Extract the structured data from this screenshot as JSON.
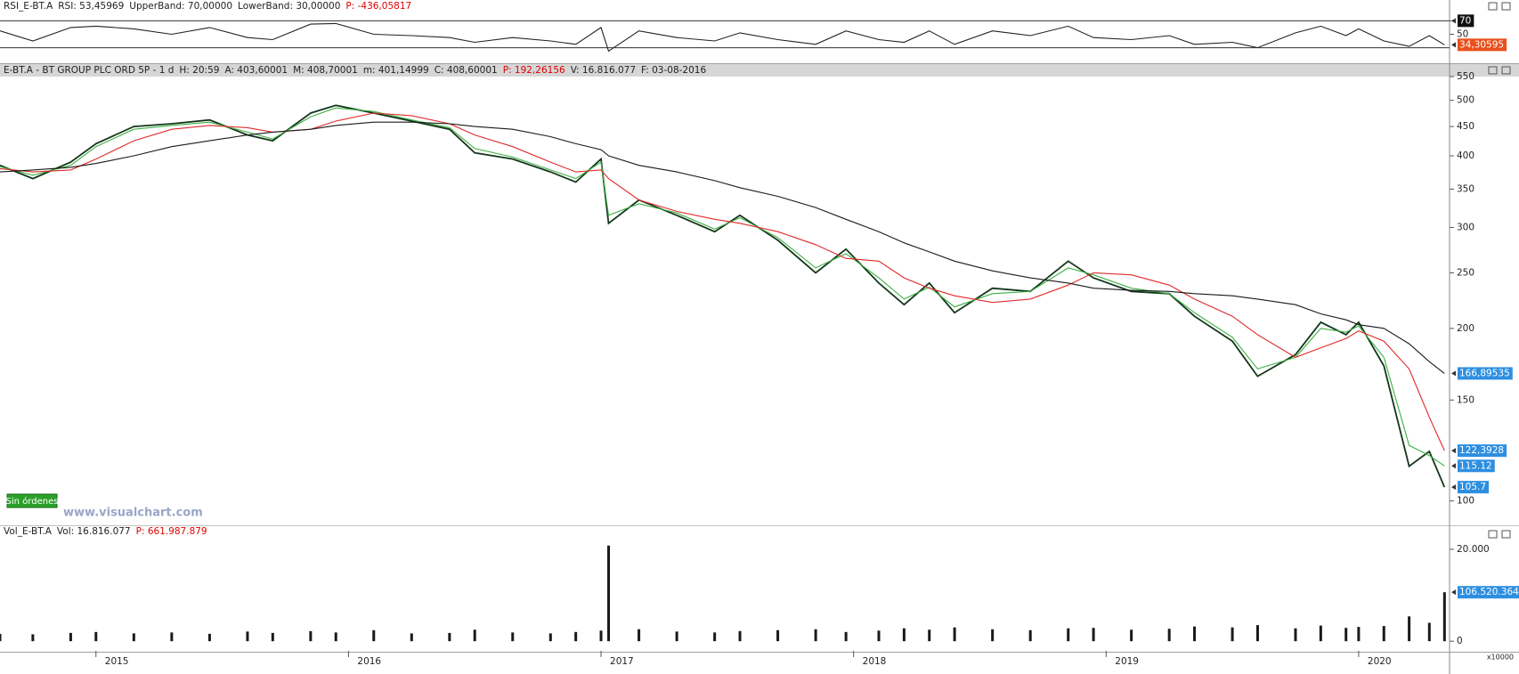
{
  "chart_data": [
    {
      "type": "line",
      "header": [
        {
          "text": "RSI_E-BT.A",
          "color": "#222222"
        },
        {
          "text": "RSI: 53,45969",
          "color": "#222222"
        },
        {
          "text": "UpperBand: 70,00000",
          "color": "#222222"
        },
        {
          "text": "LowerBand: 30,00000",
          "color": "#222222"
        },
        {
          "text": "P: -436,05817",
          "color": "#e00000"
        }
      ],
      "x": [
        2014.62,
        2014.75,
        2014.9,
        2015.0,
        2015.15,
        2015.3,
        2015.45,
        2015.6,
        2015.7,
        2015.85,
        2015.95,
        2016.1,
        2016.25,
        2016.4,
        2016.5,
        2016.65,
        2016.8,
        2016.9,
        2017.0,
        2017.03,
        2017.15,
        2017.3,
        2017.45,
        2017.55,
        2017.7,
        2017.85,
        2017.97,
        2018.1,
        2018.2,
        2018.3,
        2018.4,
        2018.55,
        2018.7,
        2018.85,
        2018.95,
        2019.1,
        2019.25,
        2019.35,
        2019.5,
        2019.6,
        2019.75,
        2019.85,
        2019.95,
        2020.0,
        2020.1,
        2020.2,
        2020.28,
        2020.34
      ],
      "series": [
        {
          "name": "RSI",
          "color": "#222222",
          "values": [
            55,
            40,
            60,
            62,
            58,
            50,
            60,
            45,
            42,
            65,
            66,
            50,
            48,
            45,
            38,
            45,
            40,
            35,
            60,
            25,
            55,
            45,
            40,
            52,
            42,
            35,
            55,
            42,
            38,
            55,
            35,
            55,
            48,
            62,
            45,
            42,
            48,
            35,
            38,
            30,
            52,
            62,
            48,
            58,
            40,
            32,
            48,
            34.30595
          ]
        }
      ],
      "bands": [
        70,
        30
      ],
      "xlim": [
        2014.62,
        2020.36
      ],
      "ylim": [
        7,
        81
      ],
      "yticks": [
        50,
        70
      ],
      "axis_markers": [
        {
          "value": 70,
          "label": "70",
          "color": "#111111"
        },
        {
          "value": 34.30595,
          "label": "34,30595",
          "color": "#e8501c"
        }
      ]
    },
    {
      "type": "line",
      "log_scale": true,
      "header": [
        {
          "text": "E-BT.A - BT GROUP PLC ORD 5P - 1 d",
          "color": "#222222"
        },
        {
          "text": "H: 20:59",
          "color": "#222222"
        },
        {
          "text": "A: 403,60001",
          "color": "#222222"
        },
        {
          "text": "M: 408,70001",
          "color": "#222222"
        },
        {
          "text": "m: 401,14999",
          "color": "#222222"
        },
        {
          "text": "C: 408,60001",
          "color": "#222222"
        },
        {
          "text": "P: 192,26156",
          "color": "#e00000"
        },
        {
          "text": "V: 16.816.077",
          "color": "#222222"
        },
        {
          "text": "F: 03-08-2016",
          "color": "#222222"
        }
      ],
      "x": [
        2014.62,
        2014.75,
        2014.9,
        2015.0,
        2015.15,
        2015.3,
        2015.45,
        2015.6,
        2015.7,
        2015.85,
        2015.95,
        2016.1,
        2016.25,
        2016.4,
        2016.5,
        2016.65,
        2016.8,
        2016.9,
        2017.0,
        2017.03,
        2017.15,
        2017.3,
        2017.45,
        2017.55,
        2017.7,
        2017.85,
        2017.97,
        2018.1,
        2018.2,
        2018.3,
        2018.4,
        2018.55,
        2018.7,
        2018.85,
        2018.95,
        2019.1,
        2019.25,
        2019.35,
        2019.5,
        2019.6,
        2019.75,
        2019.85,
        2019.95,
        2020.0,
        2020.1,
        2020.2,
        2020.28,
        2020.34
      ],
      "series": [
        {
          "name": "E-BT.A",
          "color": "#14361a",
          "values": [
            385,
            365,
            390,
            420,
            450,
            455,
            462,
            435,
            425,
            475,
            490,
            475,
            460,
            445,
            405,
            395,
            375,
            360,
            395,
            305,
            335,
            315,
            295,
            315,
            285,
            250,
            275,
            240,
            220,
            240,
            213,
            235,
            232,
            262,
            245,
            232,
            230,
            210,
            190,
            165,
            180,
            205,
            195,
            205,
            172,
            115,
            122,
            105.7
          ]
        },
        {
          "name": "MA20",
          "color": "#3cb043",
          "values": [
            383,
            370,
            385,
            415,
            445,
            452,
            458,
            440,
            428,
            468,
            485,
            478,
            462,
            448,
            412,
            398,
            378,
            365,
            390,
            315,
            330,
            318,
            298,
            312,
            288,
            255,
            270,
            245,
            225,
            236,
            218,
            230,
            232,
            255,
            248,
            235,
            230,
            213,
            193,
            170,
            178,
            200,
            197,
            202,
            178,
            125,
            120,
            115.12
          ]
        },
        {
          "name": "MA50",
          "color": "#e02a2a",
          "values": [
            380,
            375,
            378,
            395,
            425,
            445,
            452,
            448,
            440,
            445,
            460,
            475,
            470,
            455,
            435,
            415,
            390,
            375,
            378,
            365,
            335,
            320,
            310,
            305,
            295,
            280,
            265,
            262,
            245,
            235,
            228,
            222,
            225,
            238,
            250,
            248,
            238,
            225,
            210,
            195,
            178,
            185,
            192,
            198,
            190,
            170,
            140,
            122.3928
          ]
        },
        {
          "name": "MA200",
          "color": "#1a1a1a",
          "values": [
            375,
            378,
            382,
            388,
            400,
            415,
            425,
            435,
            440,
            445,
            452,
            458,
            458,
            455,
            450,
            445,
            432,
            420,
            410,
            400,
            385,
            375,
            362,
            352,
            340,
            325,
            310,
            295,
            282,
            272,
            262,
            252,
            245,
            240,
            235,
            233,
            232,
            230,
            228,
            225,
            220,
            212,
            207,
            203,
            200,
            188,
            175,
            166.89535
          ]
        }
      ],
      "xlim": [
        2014.62,
        2020.36
      ],
      "ylim": [
        91,
        550
      ],
      "yticks": [
        100,
        150,
        200,
        250,
        300,
        350,
        400,
        450,
        500,
        550
      ],
      "axis_markers": [
        {
          "value": 166.89535,
          "label": "166,89535",
          "color": "#2d8fe0"
        },
        {
          "value": 122.3928,
          "label": "122,3928",
          "color": "#2d8fe0"
        },
        {
          "value": 115.12,
          "label": "115.12",
          "color": "#2d8fe0"
        },
        {
          "value": 105.7,
          "label": "105.7",
          "color": "#2d8fe0"
        }
      ]
    },
    {
      "type": "bar",
      "header": [
        {
          "text": "Vol_E-BT.A",
          "color": "#222222"
        },
        {
          "text": "Vol: 16.816.077",
          "color": "#222222"
        },
        {
          "text": "P: 661.987.879",
          "color": "#e00000"
        }
      ],
      "unit_label": "x10000",
      "x": [
        2014.62,
        2014.75,
        2014.9,
        2015.0,
        2015.15,
        2015.3,
        2015.45,
        2015.6,
        2015.7,
        2015.85,
        2015.95,
        2016.1,
        2016.25,
        2016.4,
        2016.5,
        2016.65,
        2016.8,
        2016.9,
        2017.0,
        2017.03,
        2017.15,
        2017.3,
        2017.45,
        2017.55,
        2017.7,
        2017.85,
        2017.97,
        2018.1,
        2018.2,
        2018.3,
        2018.4,
        2018.55,
        2018.7,
        2018.85,
        2018.95,
        2019.1,
        2019.25,
        2019.35,
        2019.5,
        2019.6,
        2019.75,
        2019.85,
        2019.95,
        2020.0,
        2020.1,
        2020.2,
        2020.28,
        2020.34
      ],
      "series": [
        {
          "name": "Vol",
          "color": "#1a1a1a",
          "values": [
            1600,
            1500,
            1800,
            2000,
            1700,
            1900,
            1600,
            2100,
            1800,
            2200,
            1900,
            2400,
            1700,
            1800,
            2500,
            1900,
            1700,
            2000,
            2300,
            20800,
            2600,
            2100,
            1900,
            2200,
            2400,
            2600,
            2000,
            2300,
            2800,
            2500,
            3000,
            2600,
            2400,
            2800,
            2900,
            2500,
            2700,
            3200,
            3000,
            3500,
            2800,
            3400,
            2900,
            3100,
            3300,
            5400,
            4000,
            10652.0364
          ]
        }
      ],
      "xlim": [
        2014.62,
        2020.36
      ],
      "ylim": [
        -2100,
        22500
      ],
      "yticks": [
        0,
        {
          "value": 20000,
          "label": "20.000"
        }
      ],
      "xticks": [
        2015,
        2016,
        2017,
        2018,
        2019,
        2020
      ],
      "axis_markers": [
        {
          "value": 10652.0364,
          "label": "106.520.364",
          "color": "#2d8fe0"
        }
      ]
    }
  ],
  "ui": {
    "order_status": "Sin órdenes",
    "watermark": "www.visualchart.com"
  }
}
